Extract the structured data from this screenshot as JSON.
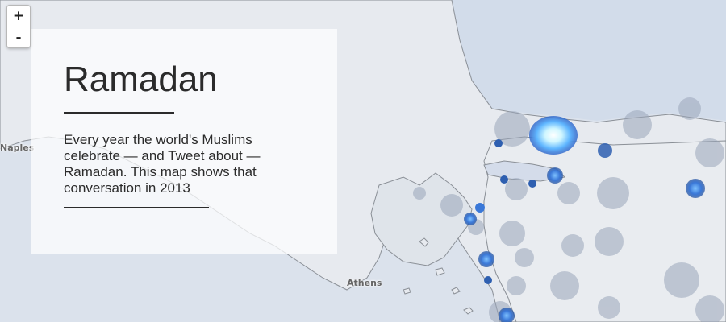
{
  "zoom": {
    "in_label": "+",
    "out_label": "-"
  },
  "info": {
    "title": "Ramadan",
    "description": "Every year the world's Muslims celebrate — and Tweet about — Ramadan. This map shows that conversation in 2013"
  },
  "places": {
    "naples": "Naples",
    "athens": "Athens"
  },
  "colors": {
    "land": "#e6e9ee",
    "sea": "#d5dde9",
    "coast": "#8a8f96",
    "tweet_halo": "#9aa6ba",
    "tweet_dot": "#2e5fb0",
    "tweet_hot": "#e9fbff"
  }
}
